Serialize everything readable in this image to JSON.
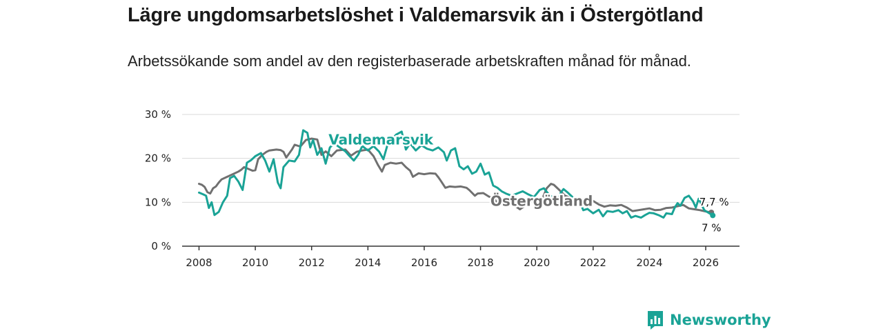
{
  "title": "Lägre ungdomsarbetslöshet i Valdemarsvik än i Östergötland",
  "subtitle": "Arbetssökande som andel av den registerbaserade arbetskraften månad för månad.",
  "brand": {
    "name": "Newsworthy",
    "icon": "bar-chart-icon",
    "color": "#1aa396"
  },
  "chart_data": {
    "type": "line",
    "title": "Lägre ungdomsarbetslöshet i Valdemarsvik än i Östergötland",
    "xlabel": "",
    "ylabel": "",
    "xlim": [
      2007.4,
      2027.2
    ],
    "ylim": [
      0,
      30
    ],
    "x_ticks": [
      2008,
      2010,
      2012,
      2014,
      2016,
      2018,
      2020,
      2022,
      2024,
      2026
    ],
    "x_tick_labels": [
      "2008",
      "2010",
      "2012",
      "2014",
      "2016",
      "2018",
      "2020",
      "2022",
      "2024",
      "2026"
    ],
    "y_ticks": [
      0,
      10,
      20,
      30
    ],
    "y_tick_labels": [
      "0 %",
      "10 %",
      "20 %",
      "30 %"
    ],
    "grid": true,
    "series": [
      {
        "name": "Östergötland",
        "color": "#707070",
        "end_label": "7,7 %",
        "points": [
          [
            2008.0,
            14.2
          ],
          [
            2008.1,
            14.0
          ],
          [
            2008.2,
            13.5
          ],
          [
            2008.3,
            12.3
          ],
          [
            2008.4,
            12.0
          ],
          [
            2008.5,
            13.2
          ],
          [
            2008.6,
            13.6
          ],
          [
            2008.7,
            14.5
          ],
          [
            2008.8,
            15.2
          ],
          [
            2009.0,
            15.8
          ],
          [
            2009.2,
            16.4
          ],
          [
            2009.4,
            17.0
          ],
          [
            2009.5,
            17.4
          ],
          [
            2009.6,
            18.0
          ],
          [
            2009.75,
            17.6
          ],
          [
            2009.9,
            17.2
          ],
          [
            2010.0,
            17.3
          ],
          [
            2010.1,
            19.8
          ],
          [
            2010.25,
            20.8
          ],
          [
            2010.4,
            21.5
          ],
          [
            2010.5,
            21.8
          ],
          [
            2010.75,
            22.0
          ],
          [
            2010.9,
            21.9
          ],
          [
            2011.0,
            21.5
          ],
          [
            2011.1,
            20.2
          ],
          [
            2011.3,
            22.0
          ],
          [
            2011.4,
            23.1
          ],
          [
            2011.6,
            22.7
          ],
          [
            2011.8,
            24.2
          ],
          [
            2012.0,
            24.5
          ],
          [
            2012.2,
            24.3
          ],
          [
            2012.35,
            20.8
          ],
          [
            2012.5,
            21.6
          ],
          [
            2012.7,
            20.5
          ],
          [
            2012.9,
            21.8
          ],
          [
            2013.2,
            22.0
          ],
          [
            2013.4,
            20.6
          ],
          [
            2013.6,
            21.5
          ],
          [
            2013.8,
            21.8
          ],
          [
            2014.0,
            22.0
          ],
          [
            2014.2,
            20.5
          ],
          [
            2014.35,
            18.6
          ],
          [
            2014.5,
            17.0
          ],
          [
            2014.6,
            18.5
          ],
          [
            2014.8,
            19.0
          ],
          [
            2015.0,
            18.8
          ],
          [
            2015.2,
            19.0
          ],
          [
            2015.35,
            18.0
          ],
          [
            2015.5,
            17.2
          ],
          [
            2015.6,
            15.8
          ],
          [
            2015.8,
            16.6
          ],
          [
            2016.0,
            16.4
          ],
          [
            2016.2,
            16.6
          ],
          [
            2016.4,
            16.5
          ],
          [
            2016.5,
            15.7
          ],
          [
            2016.6,
            14.8
          ],
          [
            2016.75,
            13.3
          ],
          [
            2016.9,
            13.6
          ],
          [
            2017.1,
            13.5
          ],
          [
            2017.3,
            13.6
          ],
          [
            2017.5,
            13.3
          ],
          [
            2017.6,
            12.8
          ],
          [
            2017.8,
            11.5
          ],
          [
            2017.9,
            12.0
          ],
          [
            2018.1,
            12.1
          ],
          [
            2018.3,
            11.3
          ],
          [
            2018.5,
            10.8
          ],
          [
            2018.6,
            9.5
          ],
          [
            2018.8,
            10.4
          ],
          [
            2019.0,
            10.5
          ],
          [
            2019.2,
            9.3
          ],
          [
            2019.4,
            8.4
          ],
          [
            2019.6,
            9.3
          ],
          [
            2019.8,
            10.3
          ],
          [
            2020.0,
            10.5
          ],
          [
            2020.2,
            10.8
          ],
          [
            2020.35,
            13.2
          ],
          [
            2020.5,
            14.2
          ],
          [
            2020.6,
            14.0
          ],
          [
            2020.8,
            12.8
          ],
          [
            2021.0,
            11.5
          ],
          [
            2021.2,
            11.0
          ],
          [
            2021.4,
            10.8
          ],
          [
            2021.6,
            10.5
          ],
          [
            2021.8,
            10.0
          ],
          [
            2022.0,
            10.3
          ],
          [
            2022.2,
            9.5
          ],
          [
            2022.4,
            9.0
          ],
          [
            2022.6,
            9.3
          ],
          [
            2022.8,
            9.2
          ],
          [
            2023.0,
            9.4
          ],
          [
            2023.2,
            8.8
          ],
          [
            2023.4,
            8.0
          ],
          [
            2023.6,
            8.2
          ],
          [
            2023.8,
            8.4
          ],
          [
            2024.0,
            8.6
          ],
          [
            2024.2,
            8.2
          ],
          [
            2024.4,
            8.3
          ],
          [
            2024.6,
            8.7
          ],
          [
            2024.8,
            8.8
          ],
          [
            2025.0,
            9.1
          ],
          [
            2025.2,
            9.4
          ],
          [
            2025.4,
            8.6
          ],
          [
            2025.6,
            8.4
          ],
          [
            2025.8,
            8.2
          ],
          [
            2026.0,
            7.9
          ],
          [
            2026.2,
            7.7
          ]
        ]
      },
      {
        "name": "Valdemarsvik",
        "color": "#1aa396",
        "end_label": "7 %",
        "points": [
          [
            2008.0,
            12.2
          ],
          [
            2008.15,
            11.8
          ],
          [
            2008.25,
            11.5
          ],
          [
            2008.35,
            8.7
          ],
          [
            2008.45,
            10.0
          ],
          [
            2008.55,
            7.1
          ],
          [
            2008.7,
            7.8
          ],
          [
            2008.85,
            10.0
          ],
          [
            2009.0,
            11.5
          ],
          [
            2009.1,
            15.5
          ],
          [
            2009.25,
            16.0
          ],
          [
            2009.4,
            14.7
          ],
          [
            2009.55,
            12.8
          ],
          [
            2009.7,
            19.0
          ],
          [
            2009.85,
            19.6
          ],
          [
            2010.0,
            20.5
          ],
          [
            2010.2,
            21.2
          ],
          [
            2010.35,
            19.5
          ],
          [
            2010.5,
            17.0
          ],
          [
            2010.65,
            19.8
          ],
          [
            2010.8,
            14.5
          ],
          [
            2010.9,
            13.2
          ],
          [
            2011.0,
            18.0
          ],
          [
            2011.2,
            19.5
          ],
          [
            2011.4,
            19.3
          ],
          [
            2011.55,
            20.8
          ],
          [
            2011.7,
            26.4
          ],
          [
            2011.85,
            25.8
          ],
          [
            2011.95,
            22.5
          ],
          [
            2012.05,
            24.2
          ],
          [
            2012.2,
            20.8
          ],
          [
            2012.35,
            22.3
          ],
          [
            2012.5,
            18.8
          ],
          [
            2012.65,
            22.5
          ],
          [
            2012.8,
            23.4
          ],
          [
            2013.0,
            22.5
          ],
          [
            2013.2,
            21.6
          ],
          [
            2013.35,
            20.5
          ],
          [
            2013.5,
            19.5
          ],
          [
            2013.65,
            20.8
          ],
          [
            2013.8,
            22.8
          ],
          [
            2014.0,
            21.8
          ],
          [
            2014.2,
            22.8
          ],
          [
            2014.4,
            21.5
          ],
          [
            2014.55,
            19.8
          ],
          [
            2014.7,
            23.2
          ],
          [
            2014.85,
            24.3
          ],
          [
            2015.0,
            25.4
          ],
          [
            2015.2,
            26.1
          ],
          [
            2015.35,
            22.0
          ],
          [
            2015.5,
            23.4
          ],
          [
            2015.7,
            21.8
          ],
          [
            2015.9,
            23.0
          ],
          [
            2016.1,
            22.2
          ],
          [
            2016.3,
            21.8
          ],
          [
            2016.5,
            22.5
          ],
          [
            2016.7,
            21.4
          ],
          [
            2016.8,
            19.5
          ],
          [
            2016.95,
            21.8
          ],
          [
            2017.1,
            22.3
          ],
          [
            2017.25,
            18.2
          ],
          [
            2017.4,
            17.5
          ],
          [
            2017.55,
            18.2
          ],
          [
            2017.7,
            16.5
          ],
          [
            2017.85,
            17.0
          ],
          [
            2018.0,
            18.8
          ],
          [
            2018.15,
            16.3
          ],
          [
            2018.3,
            16.8
          ],
          [
            2018.45,
            13.8
          ],
          [
            2018.6,
            13.3
          ],
          [
            2018.75,
            12.5
          ],
          [
            2018.9,
            12.0
          ],
          [
            2019.1,
            11.5
          ],
          [
            2019.3,
            12.0
          ],
          [
            2019.5,
            12.5
          ],
          [
            2019.7,
            11.8
          ],
          [
            2019.9,
            11.2
          ],
          [
            2020.1,
            12.8
          ],
          [
            2020.25,
            13.2
          ],
          [
            2020.4,
            12.0
          ],
          [
            2020.55,
            11.2
          ],
          [
            2020.7,
            9.8
          ],
          [
            2020.85,
            12.2
          ],
          [
            2020.95,
            13.0
          ],
          [
            2021.1,
            12.2
          ],
          [
            2021.3,
            11.0
          ],
          [
            2021.5,
            10.5
          ],
          [
            2021.65,
            8.2
          ],
          [
            2021.8,
            8.5
          ],
          [
            2022.0,
            7.5
          ],
          [
            2022.2,
            8.3
          ],
          [
            2022.35,
            6.8
          ],
          [
            2022.5,
            8.0
          ],
          [
            2022.7,
            7.8
          ],
          [
            2022.9,
            8.2
          ],
          [
            2023.05,
            7.5
          ],
          [
            2023.2,
            8.0
          ],
          [
            2023.35,
            6.5
          ],
          [
            2023.5,
            6.9
          ],
          [
            2023.7,
            6.5
          ],
          [
            2023.85,
            7.1
          ],
          [
            2024.0,
            7.6
          ],
          [
            2024.15,
            7.5
          ],
          [
            2024.35,
            7.0
          ],
          [
            2024.5,
            6.5
          ],
          [
            2024.6,
            7.5
          ],
          [
            2024.8,
            7.3
          ],
          [
            2024.9,
            8.8
          ],
          [
            2025.0,
            9.8
          ],
          [
            2025.1,
            9.2
          ],
          [
            2025.25,
            11.0
          ],
          [
            2025.4,
            11.5
          ],
          [
            2025.55,
            10.2
          ],
          [
            2025.65,
            8.8
          ],
          [
            2025.75,
            10.8
          ],
          [
            2025.85,
            9.5
          ],
          [
            2025.95,
            8.2
          ],
          [
            2026.05,
            7.8
          ],
          [
            2026.15,
            7.4
          ],
          [
            2026.25,
            7.0
          ]
        ]
      }
    ]
  }
}
